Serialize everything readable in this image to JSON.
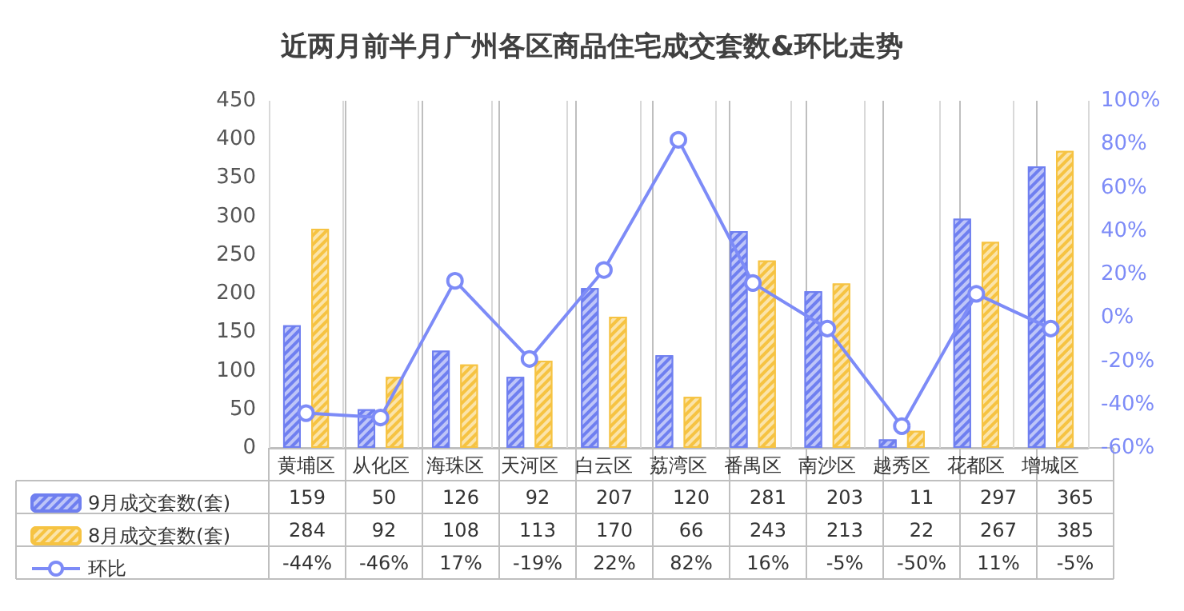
{
  "chart_data": {
    "type": "bar",
    "title": "近两月前半月广州各区商品住宅成交套数&环比走势",
    "categories": [
      "黄埔区",
      "从化区",
      "海珠区",
      "天河区",
      "白云区",
      "荔湾区",
      "番禺区",
      "南沙区",
      "越秀区",
      "花都区",
      "增城区"
    ],
    "series": [
      {
        "name": "9月成交套数(套)",
        "color": "#6f7ff0",
        "values": [
          159,
          50,
          126,
          92,
          207,
          120,
          281,
          203,
          11,
          297,
          365
        ],
        "value_labels": [
          "159",
          "50",
          "126",
          "92",
          "207",
          "120",
          "281",
          "203",
          "11",
          "297",
          "365"
        ]
      },
      {
        "name": "8月成交套数(套)",
        "color": "#f6c342",
        "values": [
          284,
          92,
          108,
          113,
          170,
          66,
          243,
          213,
          22,
          267,
          385
        ],
        "value_labels": [
          "284",
          "92",
          "108",
          "113",
          "170",
          "66",
          "243",
          "213",
          "22",
          "267",
          "385"
        ]
      },
      {
        "name": "环比",
        "type": "line",
        "axis": "y2",
        "color": "#7d8bf7",
        "marker": "circle",
        "values": [
          -44,
          -46,
          17,
          -19,
          22,
          82,
          16,
          -5,
          -50,
          11,
          -5
        ],
        "value_labels": [
          "-44%",
          "-46%",
          "17%",
          "-19%",
          "22%",
          "82%",
          "16%",
          "-5%",
          "-50%",
          "11%",
          "-5%"
        ]
      }
    ],
    "ylim": [
      0,
      450
    ],
    "yticks": [
      0,
      50,
      100,
      150,
      200,
      250,
      300,
      350,
      400,
      450
    ],
    "y2lim": [
      -60,
      100
    ],
    "y2ticks": [
      {
        "value": -60,
        "label": "-60%"
      },
      {
        "value": -40,
        "label": "-40%"
      },
      {
        "value": -20,
        "label": "-20%"
      },
      {
        "value": 0,
        "label": "0%"
      },
      {
        "value": 20,
        "label": "20%"
      },
      {
        "value": 40,
        "label": "40%"
      },
      {
        "value": 60,
        "label": "60%"
      },
      {
        "value": 80,
        "label": "80%"
      },
      {
        "value": 100,
        "label": "100%"
      }
    ],
    "grid": "x",
    "legend": "bottom"
  }
}
